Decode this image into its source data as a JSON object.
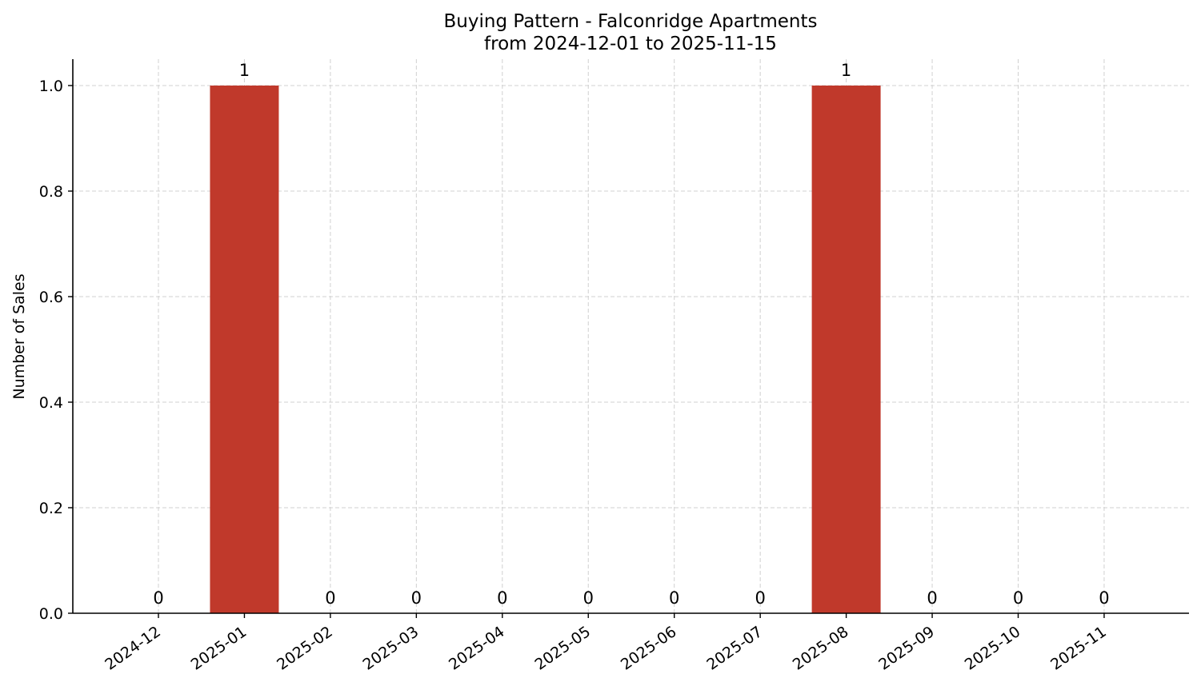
{
  "chart_data": {
    "type": "bar",
    "title": "Buying Pattern - Falconridge Apartments",
    "subtitle": "from 2024-12-01 to 2025-11-15",
    "xlabel": "",
    "ylabel": "Number of Sales",
    "categories": [
      "2024-12",
      "2025-01",
      "2025-02",
      "2025-03",
      "2025-04",
      "2025-05",
      "2025-06",
      "2025-07",
      "2025-08",
      "2025-09",
      "2025-10",
      "2025-11"
    ],
    "values": [
      0,
      1,
      0,
      0,
      0,
      0,
      0,
      0,
      1,
      0,
      0,
      0
    ],
    "data_labels": [
      "0",
      "1",
      "0",
      "0",
      "0",
      "0",
      "0",
      "0",
      "1",
      "0",
      "0",
      "0"
    ],
    "y_ticks": [
      "0.0",
      "0.2",
      "0.4",
      "0.6",
      "0.8",
      "1.0"
    ],
    "ylim": [
      0,
      1.05
    ],
    "grid": true,
    "bar_color": "#c0392b"
  }
}
